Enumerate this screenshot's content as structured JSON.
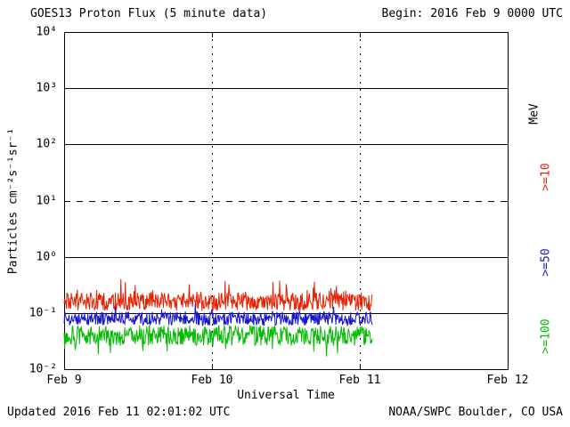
{
  "header": {
    "title": "GOES13 Proton Flux (5 minute data)",
    "begin": "Begin: 2016 Feb 9 0000 UTC"
  },
  "footer": {
    "updated": "Updated 2016 Feb 11 02:01:02 UTC",
    "source": "NOAA/SWPC Boulder, CO USA"
  },
  "chart_data": {
    "type": "line",
    "title": "GOES13 Proton Flux (5 minute data)",
    "xlabel": "Universal Time",
    "ylabel": "Particles cm⁻²s⁻¹sr⁻¹",
    "right_axis_unit": "MeV",
    "x_tick_labels": [
      "Feb 9",
      "Feb 10",
      "Feb 11",
      "Feb 12"
    ],
    "x_range_days": [
      0,
      3
    ],
    "ylog_range": [
      -2,
      4
    ],
    "y_tick_labels": [
      "10⁻²",
      "10⁻¹",
      "10⁰",
      "10¹",
      "10²",
      "10³",
      "10⁴"
    ],
    "solid_hgrid_log": [
      3,
      2,
      0,
      -1
    ],
    "dashed_hgrid_log": [
      1
    ],
    "vgrid_days": [
      1,
      2
    ],
    "grid": true,
    "legend_position": "right",
    "data_end_day": 2.084,
    "points_per_series": 560,
    "noise_seed": 20160209,
    "series": [
      {
        "name": ">=10",
        "unit": "MeV",
        "color": "#e62000",
        "log10_center": -0.8,
        "log10_amp": 0.16,
        "spike_prob": 0.1,
        "spike_amp": 0.3,
        "spike_dir": 1,
        "approx_flux_range": [
          0.08,
          0.4
        ]
      },
      {
        "name": ">=50",
        "unit": "MeV",
        "color": "#1515cc",
        "log10_center": -1.1,
        "log10_amp": 0.12,
        "spike_prob": 0.05,
        "spike_amp": 0.15,
        "spike_dir": 1,
        "approx_flux_range": [
          0.05,
          0.13
        ]
      },
      {
        "name": ">=100",
        "unit": "MeV",
        "color": "#00bb00",
        "log10_center": -1.4,
        "log10_amp": 0.18,
        "spike_prob": 0.1,
        "spike_amp": 0.25,
        "spike_dir": -1,
        "approx_flux_range": [
          0.02,
          0.06
        ]
      }
    ]
  }
}
